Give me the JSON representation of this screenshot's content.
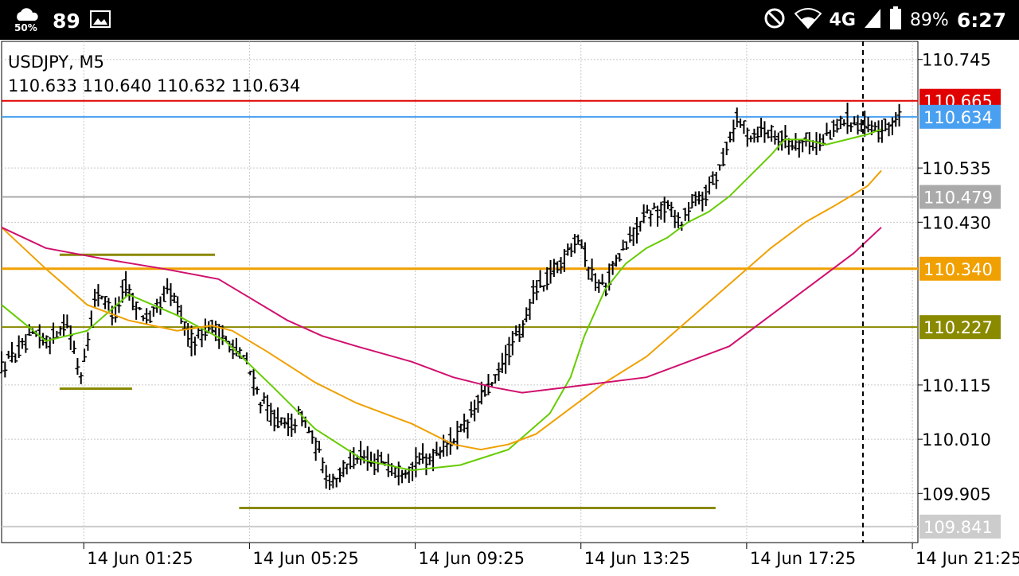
{
  "statusbar": {
    "weather_percent": "50%",
    "temperature": "89",
    "signal": "4G",
    "battery": "89%",
    "time": "6:27",
    "icons": [
      "weather-icon",
      "image-icon",
      "dnd-icon",
      "wifi-icon",
      "cell-signal-icon",
      "battery-icon"
    ]
  },
  "chart_header": {
    "symbol_timeframe": "USDJPY, M5",
    "ohlc": "110.633 110.640 110.632 110.634"
  },
  "chart_data": {
    "type": "candlestick",
    "symbol": "USDJPY",
    "timeframe": "M5",
    "ylim": [
      109.81,
      110.78
    ],
    "y_ticks": [
      "110.745",
      "110.535",
      "110.430",
      "110.115",
      "110.010",
      "109.905"
    ],
    "x_ticks": [
      "14 Jun 01:25",
      "14 Jun 05:25",
      "14 Jun 09:25",
      "14 Jun 13:25",
      "14 Jun 17:25",
      "14 Jun 21:25"
    ],
    "x_range_minutes": [
      -34,
      1293
    ],
    "price_lines": [
      {
        "name": "resistance",
        "value": 110.665,
        "label": "110.665",
        "color": "#e00000"
      },
      {
        "name": "bid",
        "value": 110.634,
        "label": "110.634",
        "color": "#4aa0f0"
      },
      {
        "name": "level-gray",
        "value": 110.479,
        "label": "110.479",
        "color": "#aaaaaa"
      },
      {
        "name": "level-orange",
        "value": 110.34,
        "label": "110.340",
        "color": "#f0a000"
      },
      {
        "name": "level-olive",
        "value": 110.227,
        "label": "110.227",
        "color": "#8a8a00"
      },
      {
        "name": "level-low",
        "value": 109.841,
        "label": "109.841",
        "color": "#cccccc"
      }
    ],
    "trend_segments": [
      {
        "start": "14 Jun 00:50",
        "end": "14 Jun 04:35",
        "value": 110.367,
        "color": "#8a8a00"
      },
      {
        "start": "14 Jun 00:50",
        "end": "14 Jun 02:35",
        "value": 110.108,
        "color": "#8a8a00"
      },
      {
        "start": "14 Jun 05:10",
        "end": "14 Jun 16:40",
        "value": 109.877,
        "color": "#8a8a00"
      }
    ],
    "moving_averages": [
      {
        "color": "#66cc00",
        "points": [
          [
            -34,
            110.27
          ],
          [
            30,
            110.2
          ],
          [
            90,
            110.22
          ],
          [
            150,
            110.29
          ],
          [
            220,
            110.25
          ],
          [
            290,
            110.2
          ],
          [
            360,
            110.11
          ],
          [
            420,
            110.03
          ],
          [
            490,
            109.97
          ],
          [
            560,
            109.95
          ],
          [
            630,
            109.96
          ],
          [
            700,
            109.99
          ],
          [
            760,
            110.06
          ],
          [
            790,
            110.13
          ],
          [
            810,
            110.21
          ],
          [
            840,
            110.3
          ],
          [
            870,
            110.35
          ],
          [
            900,
            110.38
          ],
          [
            930,
            110.4
          ],
          [
            960,
            110.43
          ],
          [
            990,
            110.45
          ],
          [
            1020,
            110.48
          ],
          [
            1050,
            110.52
          ],
          [
            1080,
            110.56
          ],
          [
            1100,
            110.59
          ],
          [
            1130,
            110.59
          ],
          [
            1160,
            110.58
          ],
          [
            1190,
            110.59
          ],
          [
            1220,
            110.6
          ],
          [
            1240,
            110.61
          ]
        ]
      },
      {
        "color": "#f0a000",
        "points": [
          [
            -34,
            110.42
          ],
          [
            30,
            110.34
          ],
          [
            90,
            110.27
          ],
          [
            150,
            110.24
          ],
          [
            220,
            110.22
          ],
          [
            270,
            110.23
          ],
          [
            300,
            110.22
          ],
          [
            350,
            110.18
          ],
          [
            420,
            110.12
          ],
          [
            480,
            110.08
          ],
          [
            560,
            110.04
          ],
          [
            620,
            110.0
          ],
          [
            660,
            109.99
          ],
          [
            700,
            110.0
          ],
          [
            740,
            110.02
          ],
          [
            790,
            110.07
          ],
          [
            840,
            110.12
          ],
          [
            900,
            110.17
          ],
          [
            960,
            110.24
          ],
          [
            1020,
            110.31
          ],
          [
            1080,
            110.38
          ],
          [
            1130,
            110.43
          ],
          [
            1170,
            110.46
          ],
          [
            1220,
            110.5
          ],
          [
            1240,
            110.53
          ]
        ]
      },
      {
        "color": "#d0106e",
        "points": [
          [
            -34,
            110.42
          ],
          [
            30,
            110.38
          ],
          [
            110,
            110.36
          ],
          [
            200,
            110.34
          ],
          [
            280,
            110.32
          ],
          [
            330,
            110.28
          ],
          [
            380,
            110.24
          ],
          [
            430,
            110.21
          ],
          [
            480,
            110.19
          ],
          [
            560,
            110.16
          ],
          [
            620,
            110.13
          ],
          [
            680,
            110.11
          ],
          [
            720,
            110.1
          ],
          [
            780,
            110.11
          ],
          [
            840,
            110.12
          ],
          [
            900,
            110.13
          ],
          [
            960,
            110.16
          ],
          [
            1020,
            110.19
          ],
          [
            1080,
            110.25
          ],
          [
            1140,
            110.31
          ],
          [
            1200,
            110.37
          ],
          [
            1240,
            110.42
          ]
        ]
      }
    ],
    "price_path": [
      [
        -34,
        110.15
      ],
      [
        15,
        110.21
      ],
      [
        35,
        110.2
      ],
      [
        60,
        110.24
      ],
      [
        80,
        110.13
      ],
      [
        105,
        110.3
      ],
      [
        130,
        110.25
      ],
      [
        145,
        110.31
      ],
      [
        160,
        110.27
      ],
      [
        180,
        110.24
      ],
      [
        210,
        110.3
      ],
      [
        240,
        110.2
      ],
      [
        270,
        110.23
      ],
      [
        300,
        110.19
      ],
      [
        320,
        110.16
      ],
      [
        340,
        110.09
      ],
      [
        360,
        110.05
      ],
      [
        380,
        110.03
      ],
      [
        400,
        110.06
      ],
      [
        420,
        110.0
      ],
      [
        440,
        109.93
      ],
      [
        460,
        109.95
      ],
      [
        480,
        109.98
      ],
      [
        500,
        109.96
      ],
      [
        520,
        109.97
      ],
      [
        540,
        109.95
      ],
      [
        560,
        109.96
      ],
      [
        580,
        109.97
      ],
      [
        600,
        109.99
      ],
      [
        620,
        110.01
      ],
      [
        640,
        110.04
      ],
      [
        660,
        110.09
      ],
      [
        680,
        110.12
      ],
      [
        700,
        110.18
      ],
      [
        720,
        110.22
      ],
      [
        740,
        110.31
      ],
      [
        750,
        110.3
      ],
      [
        760,
        110.33
      ],
      [
        780,
        110.36
      ],
      [
        800,
        110.41
      ],
      [
        810,
        110.37
      ],
      [
        820,
        110.33
      ],
      [
        840,
        110.3
      ],
      [
        850,
        110.34
      ],
      [
        870,
        110.38
      ],
      [
        890,
        110.43
      ],
      [
        910,
        110.45
      ],
      [
        930,
        110.46
      ],
      [
        950,
        110.43
      ],
      [
        970,
        110.47
      ],
      [
        990,
        110.49
      ],
      [
        1010,
        110.55
      ],
      [
        1030,
        110.63
      ],
      [
        1050,
        110.6
      ],
      [
        1070,
        110.61
      ],
      [
        1090,
        110.6
      ],
      [
        1110,
        110.58
      ],
      [
        1130,
        110.59
      ],
      [
        1150,
        110.58
      ],
      [
        1170,
        110.61
      ],
      [
        1190,
        110.63
      ],
      [
        1210,
        110.62
      ],
      [
        1230,
        110.6
      ],
      [
        1250,
        110.62
      ],
      [
        1270,
        110.634
      ]
    ]
  }
}
